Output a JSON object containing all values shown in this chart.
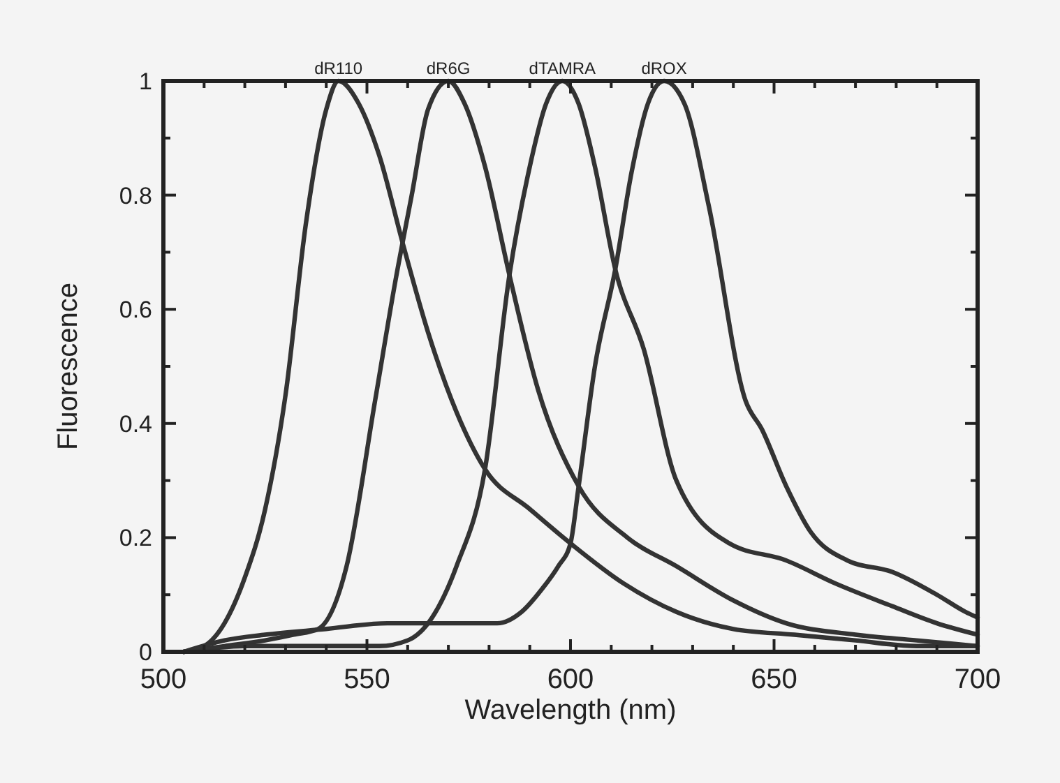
{
  "chart_data": {
    "type": "line",
    "xlabel": "Wavelength (nm)",
    "ylabel": "Fluorescence",
    "xlim": [
      500,
      700
    ],
    "ylim": [
      0,
      1
    ],
    "xticks": [
      500,
      {
        "value": 510,
        "label": null
      },
      {
        "value": 520,
        "label": null
      },
      {
        "value": 530,
        "label": null
      },
      {
        "value": 540,
        "label": null
      },
      550,
      {
        "value": 560,
        "label": null
      },
      {
        "value": 570,
        "label": null
      },
      {
        "value": 580,
        "label": null
      },
      {
        "value": 590,
        "label": null
      },
      600,
      {
        "value": 610,
        "label": null
      },
      {
        "value": 620,
        "label": null
      },
      {
        "value": 630,
        "label": null
      },
      {
        "value": 640,
        "label": null
      },
      650,
      {
        "value": 660,
        "label": null
      },
      {
        "value": 670,
        "label": null
      },
      {
        "value": 680,
        "label": null
      },
      {
        "value": 690,
        "label": null
      },
      700
    ],
    "yticks": [
      0,
      {
        "value": 0.1,
        "label": null
      },
      0.2,
      {
        "value": 0.3,
        "label": null
      },
      0.4,
      {
        "value": 0.5,
        "label": null
      },
      0.6,
      {
        "value": 0.7,
        "label": null
      },
      0.8,
      {
        "value": 0.9,
        "label": null
      },
      1
    ],
    "grid": false,
    "marker": "none",
    "line_style": "solid",
    "series": [
      {
        "name": "dR110",
        "color": "#333333",
        "x": [
          505,
          510,
          515,
          520,
          525,
          530,
          535,
          540,
          543,
          548,
          553,
          559,
          565,
          572,
          579,
          590,
          600,
          613,
          626,
          640,
          655,
          670,
          685,
          700
        ],
        "values": [
          0,
          0.01,
          0.05,
          0.13,
          0.25,
          0.45,
          0.75,
          0.95,
          1,
          0.96,
          0.87,
          0.71,
          0.56,
          0.42,
          0.32,
          0.25,
          0.19,
          0.12,
          0.07,
          0.04,
          0.03,
          0.02,
          0.01,
          0.01
        ]
      },
      {
        "name": "dR6G",
        "color": "#333333",
        "x": [
          505,
          515,
          525,
          532,
          538,
          545,
          552,
          557,
          561,
          565,
          570,
          574,
          579,
          585,
          592,
          602,
          614,
          626,
          640,
          653,
          670,
          685,
          700
        ],
        "values": [
          0,
          0.01,
          0.02,
          0.03,
          0.04,
          0.15,
          0.44,
          0.65,
          0.8,
          0.95,
          1,
          0.96,
          0.85,
          0.66,
          0.46,
          0.29,
          0.2,
          0.15,
          0.09,
          0.05,
          0.03,
          0.02,
          0.01
        ]
      },
      {
        "name": "dTAMRA",
        "color": "#333333",
        "x": [
          505,
          520,
          535,
          545,
          553,
          560,
          566,
          572,
          579,
          585,
          590,
          594,
          598,
          602,
          606,
          611,
          618,
          626,
          639,
          653,
          665,
          679,
          690,
          700
        ],
        "values": [
          0,
          0.01,
          0.01,
          0.01,
          0.01,
          0.02,
          0.06,
          0.15,
          0.32,
          0.66,
          0.85,
          0.96,
          1,
          0.96,
          0.85,
          0.67,
          0.53,
          0.3,
          0.19,
          0.16,
          0.12,
          0.08,
          0.05,
          0.03
        ]
      },
      {
        "name": "dROX",
        "color": "#333333",
        "x": [
          505,
          515,
          525,
          540,
          555,
          570,
          582,
          588,
          593,
          597,
          600,
          602,
          606,
          611,
          615,
          619,
          623,
          628,
          634,
          643,
          647,
          653,
          659,
          668,
          679,
          690,
          697,
          700
        ],
        "values": [
          0,
          0.02,
          0.03,
          0.04,
          0.05,
          0.05,
          0.05,
          0.07,
          0.11,
          0.15,
          0.19,
          0.29,
          0.5,
          0.67,
          0.84,
          0.96,
          1,
          0.96,
          0.78,
          0.44,
          0.39,
          0.29,
          0.21,
          0.16,
          0.14,
          0.1,
          0.07,
          0.06
        ]
      }
    ]
  }
}
